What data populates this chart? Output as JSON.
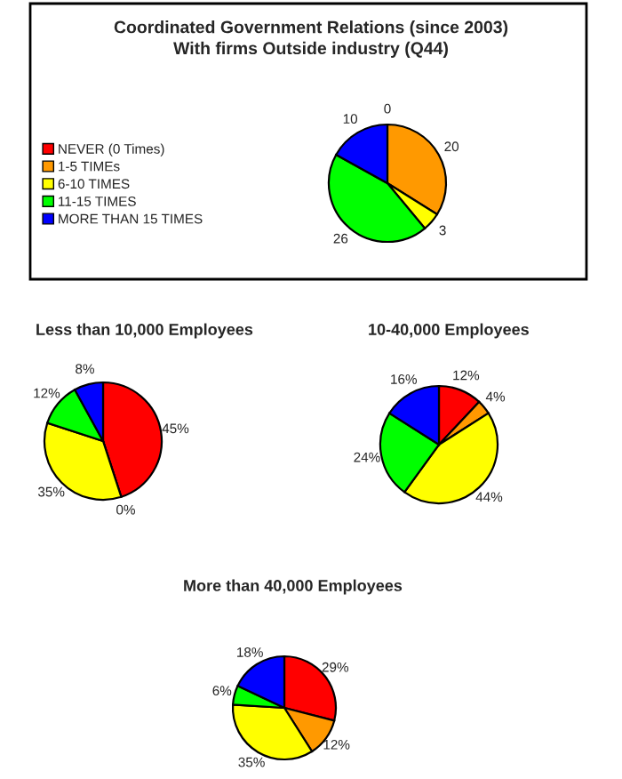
{
  "chart_data": [
    {
      "type": "pie",
      "title": "Coordinated Government Relations (since 2003)\nWith firms Outside industry (Q44)",
      "categories": [
        "NEVER (0 Times)",
        "1-5 TIMEs",
        "6-10 TIMES",
        "11-15 TIMES",
        "MORE THAN 15 TIMES"
      ],
      "values": [
        0,
        20,
        3,
        26,
        10
      ],
      "colors": [
        "#ff0000",
        "#ff9900",
        "#ffff00",
        "#00ff00",
        "#0000ff"
      ],
      "value_labels": [
        "0",
        "20",
        "3",
        "26",
        "10"
      ],
      "legend": "left"
    },
    {
      "type": "pie",
      "title": "Less than 10,000 Employees",
      "categories": [
        null,
        null,
        null,
        null,
        null
      ],
      "values": [
        45,
        0,
        35,
        12,
        8
      ],
      "colors": [
        "#ff0000",
        "#ff9900",
        "#ffff00",
        "#00ff00",
        "#0000ff"
      ],
      "value_labels": [
        "45%",
        "0%",
        "35%",
        "12%",
        "8%"
      ]
    },
    {
      "type": "pie",
      "title": "10-40,000 Employees",
      "categories": [
        null,
        null,
        null,
        null,
        null
      ],
      "values": [
        12,
        4,
        44,
        24,
        16
      ],
      "colors": [
        "#ff0000",
        "#ff9900",
        "#ffff00",
        "#00ff00",
        "#0000ff"
      ],
      "value_labels": [
        "12%",
        "4%",
        "44%",
        "24%",
        "16%"
      ]
    },
    {
      "type": "pie",
      "title": "More than 40,000 Employees",
      "categories": [
        null,
        null,
        null,
        null,
        null
      ],
      "values": [
        29,
        12,
        35,
        6,
        18
      ],
      "colors": [
        "#ff0000",
        "#ff9900",
        "#ffff00",
        "#00ff00",
        "#0000ff"
      ],
      "value_labels": [
        "29%",
        "12%",
        "35%",
        "6%",
        "18%"
      ]
    }
  ]
}
